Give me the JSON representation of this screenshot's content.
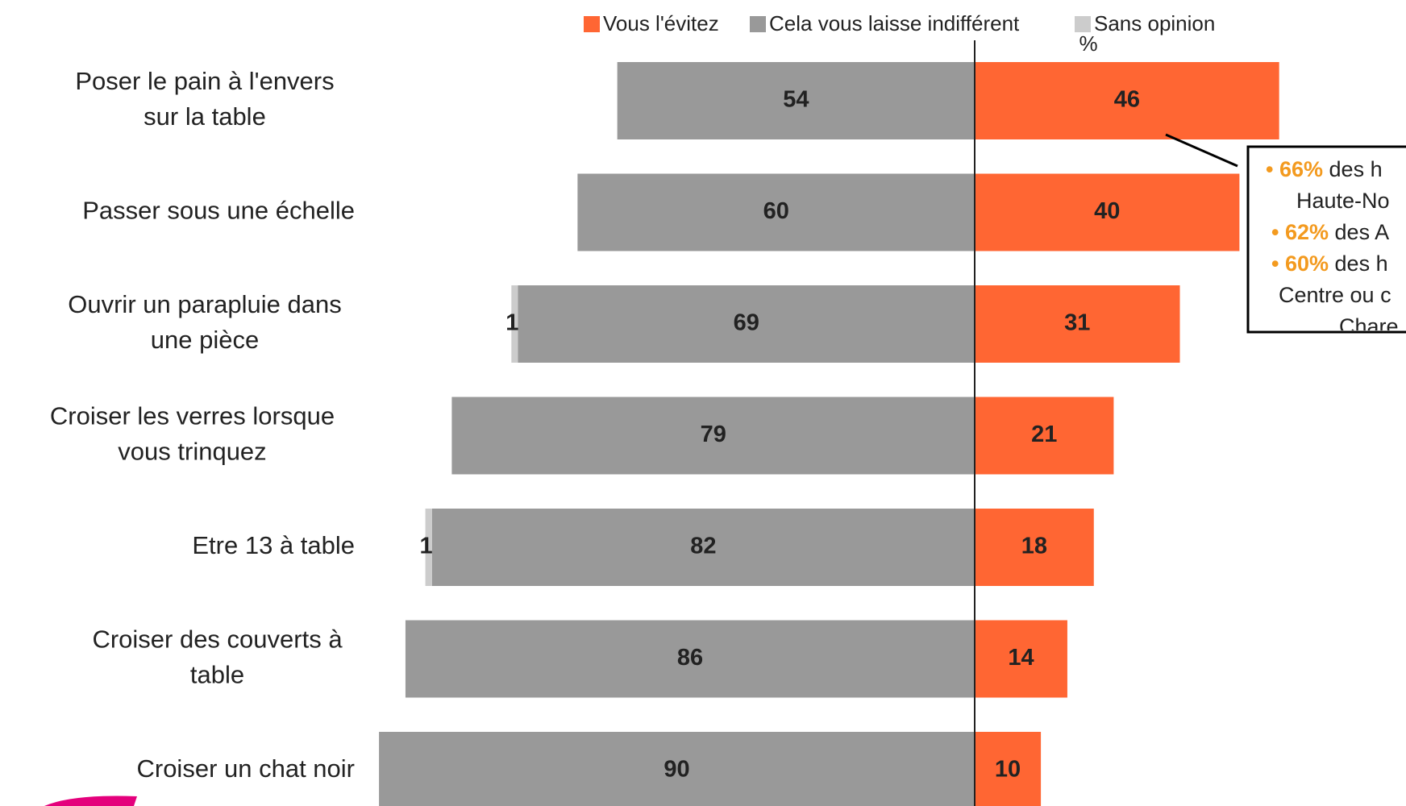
{
  "chart_data": {
    "type": "diverging-bar",
    "categories": [
      "Poser le pain à l'envers sur la table",
      "Passer sous une échelle",
      "Ouvrir un parapluie dans une pièce",
      "Croiser les verres lorsque vous trinquez",
      "Etre 13 à table",
      "Croiser des couverts à table",
      "Croiser un chat noir"
    ],
    "series": [
      {
        "name": "Vous l'évitez",
        "color": "#ff6633",
        "values": [
          46,
          40,
          31,
          21,
          18,
          14,
          10
        ]
      },
      {
        "name": "Cela vous laisse indifférent",
        "color": "#999999",
        "values": [
          54,
          60,
          69,
          79,
          82,
          86,
          90
        ]
      },
      {
        "name": "Sans opinion",
        "color": "#cccccc",
        "values": [
          null,
          null,
          1,
          null,
          1,
          null,
          null
        ]
      }
    ],
    "unit_label": "%",
    "annotation": [
      {
        "highlight": "66%",
        "text": "des h"
      },
      {
        "text": "Haute-No"
      },
      {
        "highlight": "62%",
        "text": "des A"
      },
      {
        "highlight": "60%",
        "text": "des h"
      },
      {
        "text": "Centre ou c"
      },
      {
        "text": "Chare"
      }
    ]
  }
}
